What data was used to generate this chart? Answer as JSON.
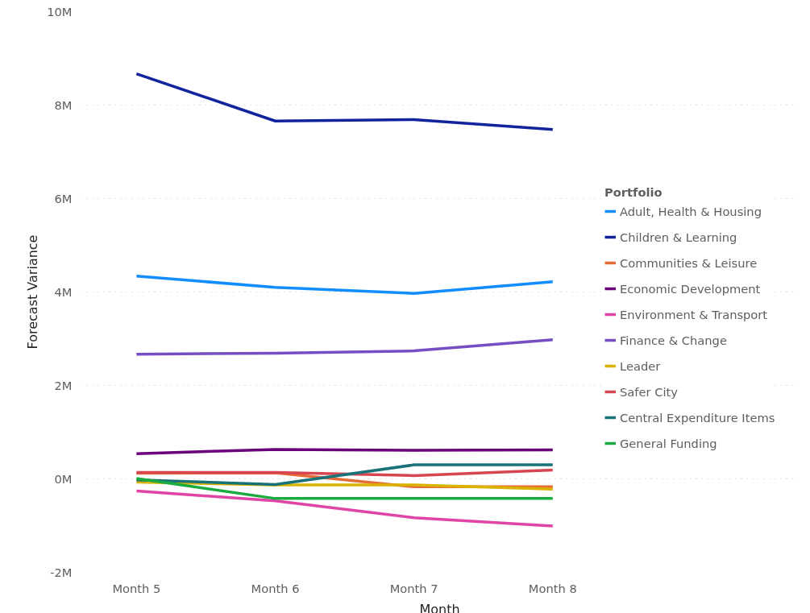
{
  "chart_data": {
    "type": "line",
    "xlabel": "Month",
    "ylabel": "Forecast Variance",
    "legend_title": "Portfolio",
    "legend": "right",
    "grid": "y",
    "line_style": "solid",
    "marker": "none",
    "categories": [
      "Month 5",
      "Month 6",
      "Month 7",
      "Month 8"
    ],
    "ylim": [
      -2000000,
      10000000
    ],
    "yticks": [
      {
        "value": -2000000,
        "label": "-2M"
      },
      {
        "value": 0,
        "label": "0M"
      },
      {
        "value": 2000000,
        "label": "2M"
      },
      {
        "value": 4000000,
        "label": "4M"
      },
      {
        "value": 6000000,
        "label": "6M"
      },
      {
        "value": 8000000,
        "label": "8M"
      },
      {
        "value": 10000000,
        "label": "10M"
      }
    ],
    "series": [
      {
        "name": "Adult, Health & Housing",
        "color": "#118dff",
        "values": [
          4340000,
          4100000,
          3970000,
          4220000
        ]
      },
      {
        "name": "Children & Learning",
        "color": "#12239e",
        "values": [
          8670000,
          7660000,
          7690000,
          7480000
        ]
      },
      {
        "name": "Communities & Leisure",
        "color": "#e66c37",
        "values": [
          120000,
          130000,
          -170000,
          -170000
        ]
      },
      {
        "name": "Economic Development",
        "color": "#6b007b",
        "values": [
          540000,
          630000,
          610000,
          620000
        ]
      },
      {
        "name": "Environment & Transport",
        "color": "#e044a7",
        "values": [
          -260000,
          -470000,
          -830000,
          -1010000
        ]
      },
      {
        "name": "Finance & Change",
        "color": "#744ec2",
        "values": [
          2670000,
          2690000,
          2740000,
          2980000
        ]
      },
      {
        "name": "Leader",
        "color": "#d9b300",
        "values": [
          -70000,
          -130000,
          -130000,
          -220000
        ]
      },
      {
        "name": "Safer City",
        "color": "#d64550",
        "values": [
          140000,
          140000,
          70000,
          190000
        ]
      },
      {
        "name": "Central Expenditure Items",
        "color": "#197278",
        "values": [
          -20000,
          -120000,
          300000,
          300000
        ]
      },
      {
        "name": "General Funding",
        "color": "#1aab40",
        "values": [
          10000,
          -420000,
          -420000,
          -420000
        ]
      }
    ]
  }
}
